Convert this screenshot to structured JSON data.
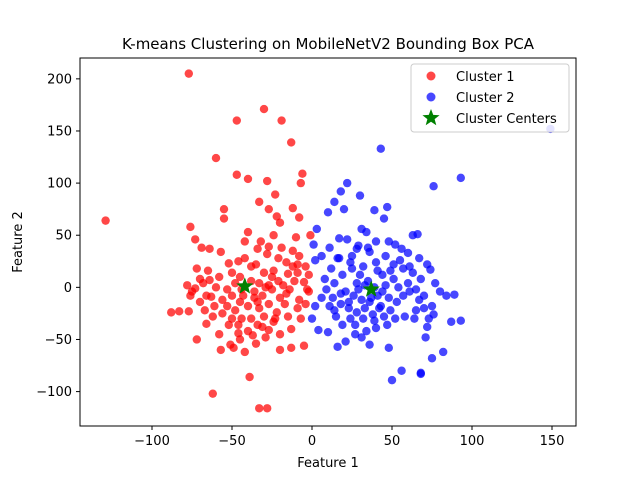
{
  "chart_data": {
    "type": "scatter",
    "title": "K-means Clustering on MobileNetV2 Bounding Box PCA",
    "xlabel": "Feature 1",
    "ylabel": "Feature 2",
    "xlim": [
      -145,
      165
    ],
    "ylim": [
      -133,
      220
    ],
    "xticks": [
      -100,
      -50,
      0,
      50,
      100,
      150
    ],
    "yticks": [
      -100,
      -50,
      0,
      50,
      100,
      150,
      200
    ],
    "xtick_labels": [
      "−100",
      "−50",
      "0",
      "50",
      "100",
      "150"
    ],
    "ytick_labels": [
      "−100",
      "−50",
      "0",
      "50",
      "100",
      "150",
      "200"
    ],
    "grid": false,
    "legend_position": "top-right",
    "series": [
      {
        "name": "Cluster 1",
        "color": "#ff0000",
        "marker": "circle",
        "points": [
          [
            -77,
            205
          ],
          [
            -30,
            171
          ],
          [
            -19,
            160
          ],
          [
            -47,
            160
          ],
          [
            -13,
            139
          ],
          [
            -60,
            124
          ],
          [
            -47,
            108
          ],
          [
            -40,
            104
          ],
          [
            -28,
            102
          ],
          [
            -6,
            109
          ],
          [
            -7,
            100
          ],
          [
            -23,
            89
          ],
          [
            -33,
            82
          ],
          [
            -55,
            75
          ],
          [
            -55,
            66
          ],
          [
            -12,
            76
          ],
          [
            -8,
            67
          ],
          [
            -27,
            75
          ],
          [
            -22,
            68
          ],
          [
            -20,
            62
          ],
          [
            -129,
            64
          ],
          [
            -76,
            58
          ],
          [
            -73,
            46
          ],
          [
            -69,
            38
          ],
          [
            -64,
            37
          ],
          [
            -40,
            53
          ],
          [
            -32,
            44
          ],
          [
            -42,
            44
          ],
          [
            -24,
            50
          ],
          [
            -34,
            37
          ],
          [
            -27,
            39
          ],
          [
            -21,
            28
          ],
          [
            -10,
            48
          ],
          [
            -12,
            35
          ],
          [
            -9,
            22
          ],
          [
            -4,
            20
          ],
          [
            -1,
            50
          ],
          [
            -57,
            34
          ],
          [
            -52,
            23
          ],
          [
            -46,
            25
          ],
          [
            -38,
            20
          ],
          [
            -30,
            14
          ],
          [
            -24,
            16
          ],
          [
            -15,
            13
          ],
          [
            -11,
            6
          ],
          [
            -5,
            5
          ],
          [
            -2,
            12
          ],
          [
            -3,
            -2
          ],
          [
            -16,
            -6
          ],
          [
            -20,
            -10
          ],
          [
            -25,
            -2
          ],
          [
            -31,
            -8
          ],
          [
            -36,
            -4
          ],
          [
            -44,
            -2
          ],
          [
            -48,
            4
          ],
          [
            -53,
            -2
          ],
          [
            -60,
            0
          ],
          [
            -64,
            7
          ],
          [
            -68,
            4
          ],
          [
            -73,
            -1
          ],
          [
            -75,
            -4
          ],
          [
            -78,
            2
          ],
          [
            -76,
            -8
          ],
          [
            -70,
            -14
          ],
          [
            -63,
            -9
          ],
          [
            -56,
            -12
          ],
          [
            -50,
            -8
          ],
          [
            -45,
            -14
          ],
          [
            -40,
            -18
          ],
          [
            -33,
            -20
          ],
          [
            -27,
            -16
          ],
          [
            -22,
            -24
          ],
          [
            -15,
            -28
          ],
          [
            -9,
            -20
          ],
          [
            -7,
            -30
          ],
          [
            -13,
            -40
          ],
          [
            -20,
            -45
          ],
          [
            -27,
            -41
          ],
          [
            -34,
            -36
          ],
          [
            -40,
            -42
          ],
          [
            -46,
            -36
          ],
          [
            -50,
            -30
          ],
          [
            -56,
            -25
          ],
          [
            -62,
            -28
          ],
          [
            -66,
            -35
          ],
          [
            -72,
            -50
          ],
          [
            -77,
            -23
          ],
          [
            -83,
            -23
          ],
          [
            -88,
            -24
          ],
          [
            -57,
            -60
          ],
          [
            -49,
            -58
          ],
          [
            -42,
            -62
          ],
          [
            -35,
            -54
          ],
          [
            -29,
            -48
          ],
          [
            -20,
            -60
          ],
          [
            -13,
            -58
          ],
          [
            -5,
            -56
          ],
          [
            -45,
            -50
          ],
          [
            -39,
            -86
          ],
          [
            -62,
            -102
          ],
          [
            -33,
            -116
          ],
          [
            -28,
            -116
          ],
          [
            -52,
            -36
          ],
          [
            -46,
            -44
          ],
          [
            -38,
            -30
          ],
          [
            -30,
            -28
          ],
          [
            -24,
            -33
          ],
          [
            -17,
            -16
          ],
          [
            -8,
            -12
          ],
          [
            -2,
            -4
          ],
          [
            -50,
            14
          ],
          [
            -45,
            10
          ],
          [
            -38,
            6
          ],
          [
            -33,
            4
          ],
          [
            -27,
            2
          ],
          [
            -21,
            6
          ],
          [
            -14,
            -2
          ],
          [
            -58,
            10
          ],
          [
            -65,
            16
          ],
          [
            -72,
            18
          ],
          [
            -53,
            -18
          ],
          [
            -43,
            -8
          ],
          [
            -36,
            -10
          ],
          [
            -29,
            0
          ],
          [
            -18,
            2
          ],
          [
            -9,
            14
          ],
          [
            -61,
            -18
          ],
          [
            -67,
            -22
          ],
          [
            -48,
            -22
          ],
          [
            -34,
            -14
          ],
          [
            -25,
            10
          ],
          [
            -16,
            24
          ],
          [
            -4,
            -16
          ],
          [
            -58,
            -45
          ],
          [
            -51,
            -55
          ],
          [
            -44,
            -30
          ],
          [
            -37,
            -46
          ],
          [
            -31,
            -38
          ],
          [
            -23,
            -30
          ],
          [
            -66,
            -8
          ],
          [
            -70,
            8
          ],
          [
            -42,
            28
          ],
          [
            -35,
            22
          ],
          [
            -28,
            32
          ],
          [
            -19,
            38
          ],
          [
            -12,
            20
          ],
          [
            -8,
            30
          ]
        ]
      },
      {
        "name": "Cluster 2",
        "color": "#0000ff",
        "marker": "circle",
        "points": [
          [
            149,
            152
          ],
          [
            93,
            105
          ],
          [
            43,
            133
          ],
          [
            76,
            97
          ],
          [
            22,
            100
          ],
          [
            18,
            92
          ],
          [
            30,
            88
          ],
          [
            14,
            82
          ],
          [
            47,
            77
          ],
          [
            20,
            75
          ],
          [
            39,
            74
          ],
          [
            10,
            72
          ],
          [
            45,
            66
          ],
          [
            3,
            56
          ],
          [
            31,
            56
          ],
          [
            34,
            53
          ],
          [
            63,
            50
          ],
          [
            66,
            51
          ],
          [
            17,
            47
          ],
          [
            22,
            46
          ],
          [
            40,
            44
          ],
          [
            48,
            44
          ],
          [
            1,
            41
          ],
          [
            11,
            38
          ],
          [
            28,
            37
          ],
          [
            36,
            34
          ],
          [
            52,
            41
          ],
          [
            56,
            37
          ],
          [
            60,
            33
          ],
          [
            67,
            28
          ],
          [
            72,
            22
          ],
          [
            74,
            17
          ],
          [
            6,
            30
          ],
          [
            2,
            26
          ],
          [
            17,
            28
          ],
          [
            24,
            24
          ],
          [
            32,
            20
          ],
          [
            40,
            24
          ],
          [
            46,
            30
          ],
          [
            51,
            22
          ],
          [
            57,
            18
          ],
          [
            63,
            14
          ],
          [
            68,
            8
          ],
          [
            77,
            4
          ],
          [
            80,
            -4
          ],
          [
            84,
            -8
          ],
          [
            89,
            -7
          ],
          [
            93,
            -32
          ],
          [
            87,
            -33
          ],
          [
            82,
            -62
          ],
          [
            75,
            -68
          ],
          [
            71,
            -48
          ],
          [
            72,
            -38
          ],
          [
            73,
            -30
          ],
          [
            65,
            -22
          ],
          [
            58,
            -28
          ],
          [
            52,
            -30
          ],
          [
            47,
            -36
          ],
          [
            40,
            -39
          ],
          [
            34,
            -42
          ],
          [
            27,
            -45
          ],
          [
            21,
            -52
          ],
          [
            16,
            -57
          ],
          [
            10,
            -43
          ],
          [
            4,
            -41
          ],
          [
            0,
            -30
          ],
          [
            2,
            -18
          ],
          [
            6,
            -10
          ],
          [
            9,
            -2
          ],
          [
            14,
            4
          ],
          [
            19,
            12
          ],
          [
            25,
            18
          ],
          [
            30,
            12
          ],
          [
            35,
            6
          ],
          [
            39,
            0
          ],
          [
            44,
            -4
          ],
          [
            48,
            -10
          ],
          [
            53,
            -14
          ],
          [
            57,
            -8
          ],
          [
            61,
            -4
          ],
          [
            67,
            -12
          ],
          [
            70,
            -20
          ],
          [
            75,
            -18
          ],
          [
            36,
            -55
          ],
          [
            48,
            -58
          ],
          [
            56,
            -80
          ],
          [
            50,
            -89
          ],
          [
            68,
            -82
          ],
          [
            68,
            -83
          ],
          [
            13,
            -10
          ],
          [
            18,
            -16
          ],
          [
            23,
            -20
          ],
          [
            28,
            -24
          ],
          [
            32,
            -30
          ],
          [
            38,
            -26
          ],
          [
            43,
            -18
          ],
          [
            49,
            -22
          ],
          [
            54,
            0
          ],
          [
            60,
            4
          ],
          [
            64,
            -30
          ],
          [
            21,
            -4
          ],
          [
            26,
            -8
          ],
          [
            31,
            -12
          ],
          [
            36,
            -14
          ],
          [
            41,
            -8
          ],
          [
            46,
            2
          ],
          [
            51,
            8
          ],
          [
            29,
            -2
          ],
          [
            33,
            2
          ],
          [
            37,
            -10
          ],
          [
            42,
            -20
          ],
          [
            45,
            -28
          ],
          [
            24,
            -30
          ],
          [
            19,
            -36
          ],
          [
            15,
            -28
          ],
          [
            11,
            -18
          ],
          [
            8,
            8
          ],
          [
            12,
            18
          ],
          [
            16,
            28
          ],
          [
            28,
            4
          ],
          [
            33,
            -20
          ],
          [
            39,
            -32
          ],
          [
            44,
            12
          ],
          [
            49,
            16
          ],
          [
            55,
            26
          ],
          [
            61,
            20
          ],
          [
            65,
            -2
          ],
          [
            70,
            -8
          ],
          [
            76,
            -26
          ],
          [
            25,
            30
          ],
          [
            29,
            40
          ],
          [
            35,
            38
          ],
          [
            41,
            16
          ],
          [
            27,
            -36
          ],
          [
            31,
            -48
          ],
          [
            23,
            -14
          ],
          [
            18,
            -6
          ],
          [
            14,
            -22
          ]
        ]
      },
      {
        "name": "Cluster Centers",
        "color": "#008000",
        "marker": "star",
        "points": [
          [
            -42,
            1
          ],
          [
            37,
            -2
          ]
        ]
      }
    ]
  }
}
